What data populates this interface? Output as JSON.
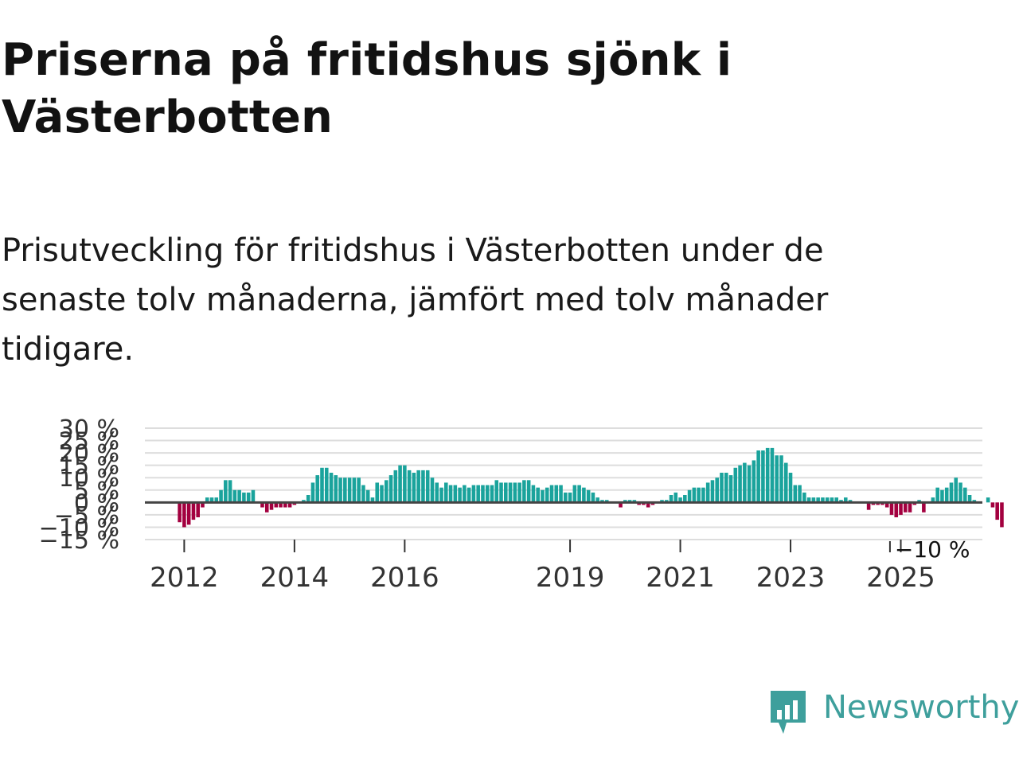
{
  "title": "Priserna på fritidshus sjönk i Västerbotten",
  "subtitle": "Prisutveckling för fritidshus i Västerbotten under de senaste tolv månaderna, jämfört med tolv månader tidigare.",
  "brand": {
    "name": "Newsworthy",
    "color": "#3e9f9c"
  },
  "colors": {
    "positive": "#1aa39c",
    "negative": "#a3003f",
    "zero_line": "#444444",
    "grid": "#dddddd"
  },
  "chart_data": {
    "type": "bar",
    "unit": "%",
    "x_start": "2011-12",
    "x_step": "month",
    "ylim": [
      -15,
      30
    ],
    "yticks": [
      {
        "value": 30,
        "label": "30 %"
      },
      {
        "value": 25,
        "label": "25 %"
      },
      {
        "value": 20,
        "label": "20 %"
      },
      {
        "value": 15,
        "label": "15 %"
      },
      {
        "value": 10,
        "label": "10 %"
      },
      {
        "value": 5,
        "label": "5 %"
      },
      {
        "value": 0,
        "label": "0 %"
      },
      {
        "value": -5,
        "label": "−5 %"
      },
      {
        "value": -10,
        "label": "−10 %"
      },
      {
        "value": -15,
        "label": "−15 %"
      }
    ],
    "xticks": [
      {
        "date": "2012-01",
        "label": "2012"
      },
      {
        "date": "2014-01",
        "label": "2014"
      },
      {
        "date": "2016-01",
        "label": "2016"
      },
      {
        "date": "2019-01",
        "label": "2019"
      },
      {
        "date": "2021-01",
        "label": "2021"
      },
      {
        "date": "2023-01",
        "label": "2023"
      },
      {
        "date": "2025-01",
        "label": "2025"
      }
    ],
    "grid": true,
    "annotation": {
      "text": "−10 %",
      "date": "2025-08"
    },
    "values": [
      -8,
      -10,
      -9,
      -7,
      -6,
      -2,
      2,
      2,
      2,
      5,
      9,
      9,
      5,
      5,
      4,
      4,
      5,
      0,
      -2,
      -4,
      -3,
      -2,
      -2,
      -2,
      -2,
      -1,
      0,
      1,
      3,
      8,
      11,
      14,
      14,
      12,
      11,
      10,
      10,
      10,
      10,
      10,
      7,
      5,
      2,
      8,
      7,
      9,
      11,
      13,
      15,
      15,
      13,
      12,
      13,
      13,
      13,
      10,
      8,
      6,
      8,
      7,
      7,
      6,
      7,
      6,
      7,
      7,
      7,
      7,
      7,
      9,
      8,
      8,
      8,
      8,
      8,
      9,
      9,
      7,
      6,
      5,
      6,
      7,
      7,
      7,
      4,
      4,
      7,
      7,
      6,
      5,
      4,
      2,
      1,
      1,
      0,
      0,
      -2,
      1,
      1,
      1,
      -1,
      -1,
      -2,
      -1,
      0,
      1,
      1,
      3,
      4,
      2,
      3,
      5,
      6,
      6,
      6,
      8,
      9,
      10,
      12,
      12,
      11,
      14,
      15,
      16,
      15,
      17,
      21,
      21,
      22,
      22,
      19,
      19,
      16,
      12,
      7,
      7,
      4,
      2,
      2,
      2,
      2,
      2,
      2,
      2,
      1,
      2,
      1,
      0,
      0,
      0,
      -3,
      -1,
      -1,
      -1,
      -2,
      -5,
      -6,
      -5,
      -4,
      -4,
      -1,
      1,
      -4,
      0,
      2,
      6,
      5,
      6,
      8,
      10,
      8,
      6,
      3,
      1,
      0,
      0,
      2,
      -2,
      -7,
      -10
    ]
  }
}
